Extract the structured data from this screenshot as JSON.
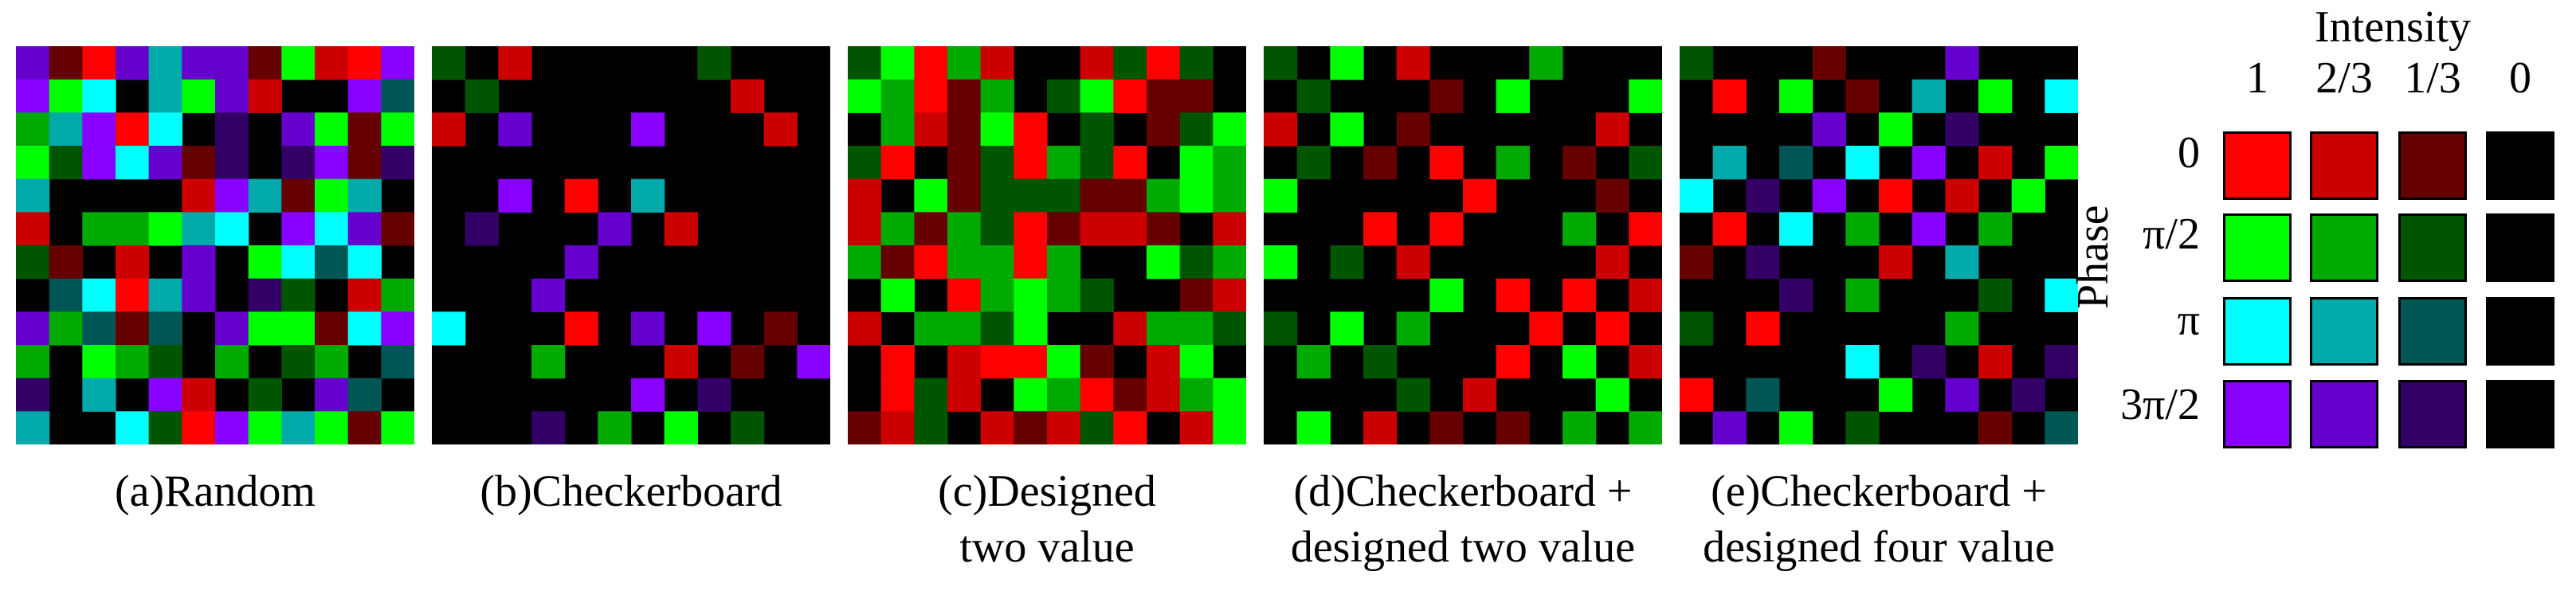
{
  "panels": [
    {
      "id": "a",
      "caption_lines": [
        "(a)Random"
      ]
    },
    {
      "id": "b",
      "caption_lines": [
        "(b)Checkerboard"
      ]
    },
    {
      "id": "c",
      "caption_lines": [
        "(c)Designed",
        "two value"
      ]
    },
    {
      "id": "d",
      "caption_lines": [
        "(d)Checkerboard +",
        "designed two value"
      ]
    },
    {
      "id": "e",
      "caption_lines": [
        "(e)Checkerboard +",
        "designed four value"
      ]
    }
  ],
  "legend": {
    "intensity_title": "Intensity",
    "phase_title": "Phase",
    "intensity_levels": [
      "1",
      "2/3",
      "1/3",
      "0"
    ],
    "phase_levels": [
      "0",
      "π/2",
      "π",
      "3π/2"
    ],
    "colors": [
      [
        "#ff0000",
        "#cc0000",
        "#660000",
        "#000000"
      ],
      [
        "#00ff00",
        "#00aa00",
        "#005500",
        "#000000"
      ],
      [
        "#00ffff",
        "#00aaaa",
        "#005555",
        "#000000"
      ],
      [
        "#8800ff",
        "#6600cc",
        "#330066",
        "#000000"
      ]
    ]
  }
}
